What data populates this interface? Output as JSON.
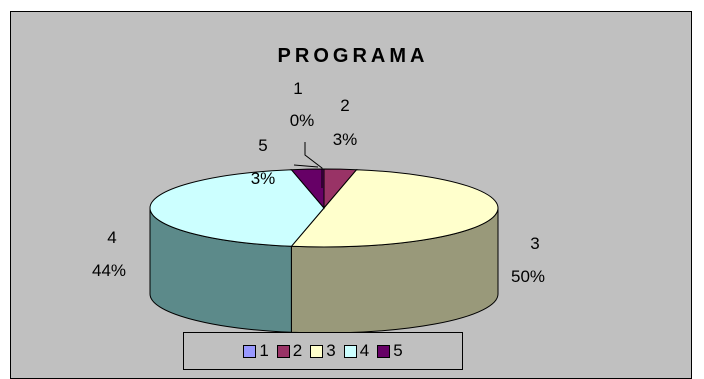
{
  "chart_data": {
    "type": "pie",
    "title": "PROGRAMA",
    "categories": [
      "1",
      "2",
      "3",
      "4",
      "5"
    ],
    "values": [
      0,
      3,
      50,
      44,
      3
    ],
    "data_labels": [
      "0%",
      "3%",
      "50%",
      "44%",
      "3%"
    ],
    "colors": [
      "#9999ff",
      "#993366",
      "#ffffcc",
      "#ccffff",
      "#660066"
    ],
    "side_colors": [
      "#5c5c99",
      "#5c1f3d",
      "#99997a",
      "#5c8a8a",
      "#3d003d"
    ],
    "legend_position": "bottom",
    "three_d": true
  }
}
